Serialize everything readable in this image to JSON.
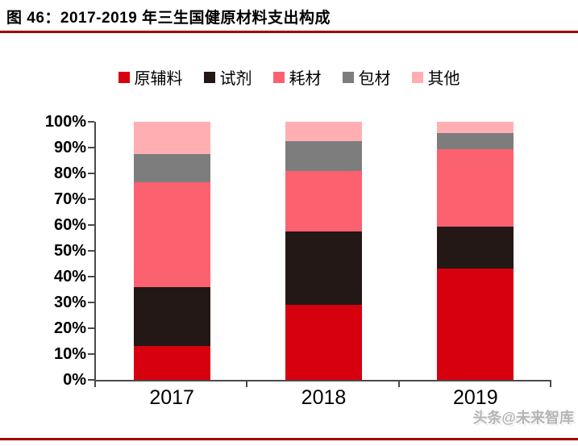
{
  "header": {
    "title": "图 46：2017-2019 年三生国健原材料支出构成"
  },
  "watermark": "头条@未来智库",
  "colors": {
    "accent_rule": "#a40000",
    "axis": "#4a4a4a",
    "text": "#000000",
    "watermark_text": "#b5b5b5"
  },
  "chart_data": {
    "type": "bar",
    "stacked": true,
    "unit": "%",
    "title": "2017-2019 年三生国健原材料支出构成",
    "categories": [
      "2017",
      "2018",
      "2019"
    ],
    "series": [
      {
        "name": "原辅料",
        "color": "#d7000f",
        "values": [
          13,
          29,
          43
        ]
      },
      {
        "name": "试剂",
        "color": "#231815",
        "values": [
          23,
          28.5,
          16.5
        ]
      },
      {
        "name": "耗材",
        "color": "#fc6170",
        "values": [
          40.5,
          23.5,
          30
        ]
      },
      {
        "name": "包材",
        "color": "#7d7d7d",
        "values": [
          11,
          11.5,
          6
        ]
      },
      {
        "name": "其他",
        "color": "#ffafb2",
        "values": [
          12.5,
          7.5,
          4.5
        ]
      }
    ],
    "xlabel": "",
    "ylabel": "",
    "ylim": [
      0,
      100
    ],
    "y_ticks": [
      "100%",
      "90%",
      "80%",
      "70%",
      "60%",
      "50%",
      "40%",
      "30%",
      "20%",
      "10%",
      "0%"
    ],
    "legend_position": "top",
    "grid": false
  }
}
